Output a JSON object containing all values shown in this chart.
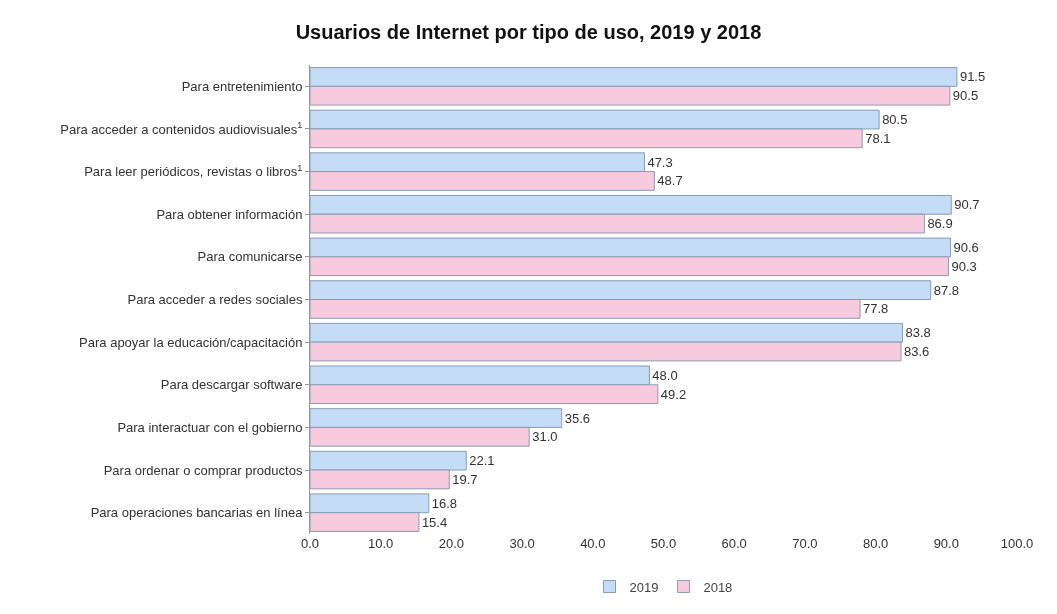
{
  "chart_data": {
    "type": "bar",
    "orientation": "horizontal",
    "title": "Usuarios de Internet por tipo de uso, 2019 y 2018",
    "categories": [
      "Para entretenimiento",
      "Para acceder a contenidos audiovisuales$^{1}$",
      "Para leer periódicos, revistas o libros$^{1}$",
      "Para obtener información",
      "Para comunicarse",
      "Para acceder a redes sociales",
      "Para apoyar la educación/capacitación",
      "Para descargar software",
      "Para interactuar con el gobierno",
      "Para ordenar o comprar productos",
      "Para operaciones bancarias en línea"
    ],
    "series": [
      {
        "name": "2019",
        "color": "#c5dcf7",
        "values": [
          91.5,
          80.5,
          47.3,
          90.7,
          90.6,
          87.8,
          83.8,
          48.0,
          35.6,
          22.1,
          16.8
        ],
        "value_labels": [
          "91.5",
          "80.5",
          "47.3",
          "90.7",
          "90.6",
          "87.8",
          "83.8",
          "48.0",
          "35.6",
          "22.1",
          "16.8"
        ]
      },
      {
        "name": "2018",
        "color": "#f7cbdd",
        "values": [
          90.5,
          78.1,
          48.7,
          86.9,
          90.3,
          77.8,
          83.6,
          49.2,
          31.0,
          19.7,
          15.4
        ],
        "value_labels": [
          "90.5",
          "78.1",
          "48.7",
          "86.9",
          "90.3",
          "77.8",
          "83.6",
          "49.2",
          "31.0",
          "19.7",
          "15.4"
        ]
      }
    ],
    "xlim": [
      0,
      100
    ],
    "xticks": [
      {
        "value": 0,
        "label": "0.0"
      },
      {
        "value": 10,
        "label": "10.0"
      },
      {
        "value": 20,
        "label": "20.0"
      },
      {
        "value": 30,
        "label": "30.0"
      },
      {
        "value": 40,
        "label": "40.0"
      },
      {
        "value": 50,
        "label": "50.0"
      },
      {
        "value": 60,
        "label": "60.0"
      },
      {
        "value": 70,
        "label": "70.0"
      },
      {
        "value": 80,
        "label": "80.0"
      },
      {
        "value": 90,
        "label": "90.0"
      },
      {
        "value": 100,
        "label": "100.0"
      }
    ],
    "grid": false,
    "legend": "bottom"
  }
}
